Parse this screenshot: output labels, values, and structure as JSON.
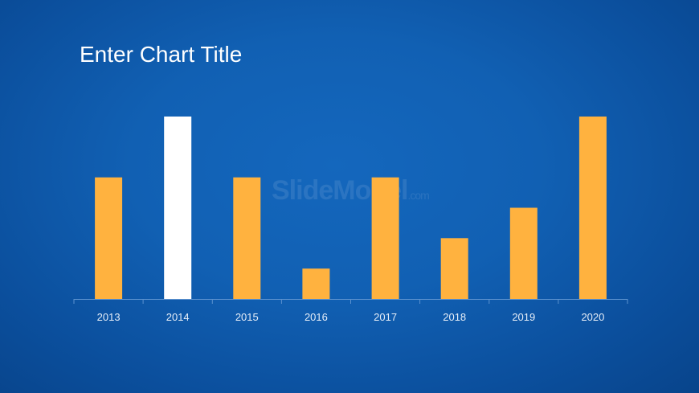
{
  "slide": {
    "title": "Enter Chart Title",
    "watermark": "SlideModel",
    "watermark_suffix": ".com"
  },
  "colors": {
    "background": "#1160b3",
    "bar": "#ffb23f",
    "highlight_bar": "#ffffff",
    "axis": "#5c92cf",
    "tick_label": "#e6eef8"
  },
  "chart_data": {
    "type": "bar",
    "title": "Enter Chart Title",
    "xlabel": "",
    "ylabel": "",
    "categories": [
      "2013",
      "2014",
      "2015",
      "2016",
      "2017",
      "2018",
      "2019",
      "2020"
    ],
    "values": [
      4,
      6,
      4,
      1,
      4,
      2,
      3,
      6
    ],
    "highlight": [
      "2014"
    ],
    "ylim": [
      0,
      6
    ],
    "grid": false,
    "legend": "none"
  }
}
